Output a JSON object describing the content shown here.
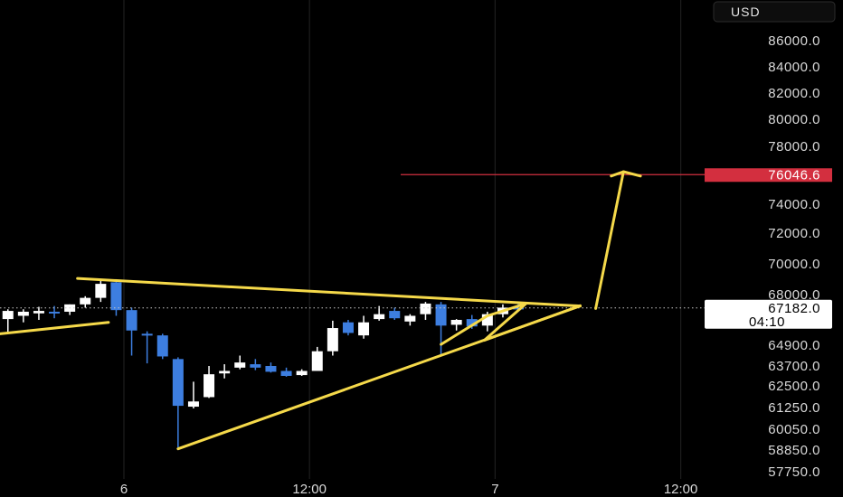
{
  "chart_data": {
    "type": "candlestick",
    "currency": "USD",
    "y_ticks": [
      {
        "label": "86000.0",
        "value": 86000
      },
      {
        "label": "84000.0",
        "value": 84000
      },
      {
        "label": "82000.0",
        "value": 82000
      },
      {
        "label": "80000.0",
        "value": 80000
      },
      {
        "label": "78000.0",
        "value": 78000
      },
      {
        "label": "74000.0",
        "value": 74000
      },
      {
        "label": "72000.0",
        "value": 72000
      },
      {
        "label": "70000.0",
        "value": 70000
      },
      {
        "label": "68000.0",
        "value": 68000
      },
      {
        "label": "64900.0",
        "value": 64900
      },
      {
        "label": "63700.0",
        "value": 63700
      },
      {
        "label": "62500.0",
        "value": 62500
      },
      {
        "label": "61250.0",
        "value": 61250
      },
      {
        "label": "60050.0",
        "value": 60050
      },
      {
        "label": "58850.0",
        "value": 58850
      },
      {
        "label": "57750.0",
        "value": 57750
      }
    ],
    "x_ticks": [
      {
        "label": "6",
        "t": 0
      },
      {
        "label": "12:00",
        "t": 12
      },
      {
        "label": "7",
        "t": 24
      },
      {
        "label": "12:00",
        "t": 36
      }
    ],
    "target_level": {
      "label": "76046.6",
      "value": 76046.6,
      "color": "#d32f3f"
    },
    "current_price": {
      "label": "67182.0",
      "countdown": "04:10",
      "value": 67182
    },
    "candles": [
      {
        "t": -7.5,
        "o": 66500,
        "h": 67100,
        "l": 65600,
        "c": 67000
      },
      {
        "t": -6.5,
        "o": 66700,
        "h": 67100,
        "l": 66300,
        "c": 66950
      },
      {
        "t": -5.5,
        "o": 66850,
        "h": 67250,
        "l": 66450,
        "c": 67000
      },
      {
        "t": -4.5,
        "o": 66950,
        "h": 67300,
        "l": 66550,
        "c": 66900
      },
      {
        "t": -3.5,
        "o": 66950,
        "h": 67400,
        "l": 66750,
        "c": 67400
      },
      {
        "t": -2.5,
        "o": 67400,
        "h": 67900,
        "l": 67200,
        "c": 67800
      },
      {
        "t": -1.5,
        "o": 67800,
        "h": 68900,
        "l": 67550,
        "c": 68700
      },
      {
        "t": -0.5,
        "o": 68800,
        "h": 68950,
        "l": 66700,
        "c": 67050
      },
      {
        "t": 0.5,
        "o": 67050,
        "h": 67200,
        "l": 64300,
        "c": 65800
      },
      {
        "t": 1.5,
        "o": 65600,
        "h": 65750,
        "l": 63850,
        "c": 65500
      },
      {
        "t": 2.5,
        "o": 65500,
        "h": 65600,
        "l": 64100,
        "c": 64250
      },
      {
        "t": 3.5,
        "o": 64100,
        "h": 64200,
        "l": 59000,
        "c": 61350
      },
      {
        "t": 4.5,
        "o": 61300,
        "h": 62750,
        "l": 61200,
        "c": 61600
      },
      {
        "t": 5.5,
        "o": 61850,
        "h": 63700,
        "l": 61800,
        "c": 63200
      },
      {
        "t": 6.5,
        "o": 63250,
        "h": 63800,
        "l": 62950,
        "c": 63400
      },
      {
        "t": 7.5,
        "o": 63600,
        "h": 64300,
        "l": 63500,
        "c": 63900
      },
      {
        "t": 8.5,
        "o": 63800,
        "h": 64100,
        "l": 63450,
        "c": 63600
      },
      {
        "t": 9.5,
        "o": 63700,
        "h": 63900,
        "l": 63300,
        "c": 63350
      },
      {
        "t": 10.5,
        "o": 63400,
        "h": 63600,
        "l": 63050,
        "c": 63100
      },
      {
        "t": 11.5,
        "o": 63150,
        "h": 63500,
        "l": 63100,
        "c": 63400
      },
      {
        "t": 12.5,
        "o": 63400,
        "h": 64800,
        "l": 63400,
        "c": 64550
      },
      {
        "t": 13.5,
        "o": 64550,
        "h": 66400,
        "l": 64300,
        "c": 65950
      },
      {
        "t": 14.5,
        "o": 66300,
        "h": 66450,
        "l": 65500,
        "c": 65650
      },
      {
        "t": 15.5,
        "o": 65500,
        "h": 66700,
        "l": 65300,
        "c": 66300
      },
      {
        "t": 16.5,
        "o": 66500,
        "h": 67300,
        "l": 66400,
        "c": 66800
      },
      {
        "t": 17.5,
        "o": 67000,
        "h": 67200,
        "l": 66450,
        "c": 66550
      },
      {
        "t": 18.5,
        "o": 66350,
        "h": 66800,
        "l": 66100,
        "c": 66700
      },
      {
        "t": 19.5,
        "o": 66800,
        "h": 67550,
        "l": 66450,
        "c": 67450
      },
      {
        "t": 20.5,
        "o": 67400,
        "h": 67550,
        "l": 64350,
        "c": 66100
      },
      {
        "t": 21.5,
        "o": 66150,
        "h": 66500,
        "l": 65800,
        "c": 66450
      },
      {
        "t": 22.5,
        "o": 66500,
        "h": 66750,
        "l": 65900,
        "c": 66050
      },
      {
        "t": 23.5,
        "o": 66100,
        "h": 66950,
        "l": 65750,
        "c": 66800
      },
      {
        "t": 24.5,
        "o": 66800,
        "h": 67400,
        "l": 66600,
        "c": 67200
      },
      {
        "t": 25.5,
        "o": 67200,
        "h": 67450,
        "l": 67000,
        "c": 67182
      }
    ],
    "drawings": [
      {
        "kind": "trendline",
        "from": {
          "t": -8,
          "v": 65600
        },
        "to": {
          "t": -1,
          "v": 66300
        }
      },
      {
        "kind": "trendline",
        "from": {
          "t": -3,
          "v": 69050
        },
        "to": {
          "t": 29.5,
          "v": 67300
        }
      },
      {
        "kind": "trendline",
        "from": {
          "t": 3.5,
          "v": 58920
        },
        "to": {
          "t": 29.5,
          "v": 67300
        }
      },
      {
        "kind": "polyline",
        "points": [
          {
            "t": 20.5,
            "v": 64950
          },
          {
            "t": 23.5,
            "v": 66700
          },
          {
            "t": 26,
            "v": 67450
          },
          {
            "t": 23.3,
            "v": 65200
          },
          {
            "t": 29.5,
            "v": 67320
          }
        ]
      },
      {
        "kind": "polyline",
        "points": [
          {
            "t": 30.5,
            "v": 67150
          },
          {
            "t": 32.3,
            "v": 76250
          }
        ]
      },
      {
        "kind": "polyline",
        "points": [
          {
            "t": 31.5,
            "v": 75950
          },
          {
            "t": 32.3,
            "v": 76250
          },
          {
            "t": 33.4,
            "v": 75950
          }
        ]
      }
    ],
    "colors": {
      "up": "#ffffff",
      "down": "#3d7ee0",
      "drawing": "#f5d94a",
      "grid": "#1d1d1d",
      "current_line": "#c8c8c8"
    }
  }
}
